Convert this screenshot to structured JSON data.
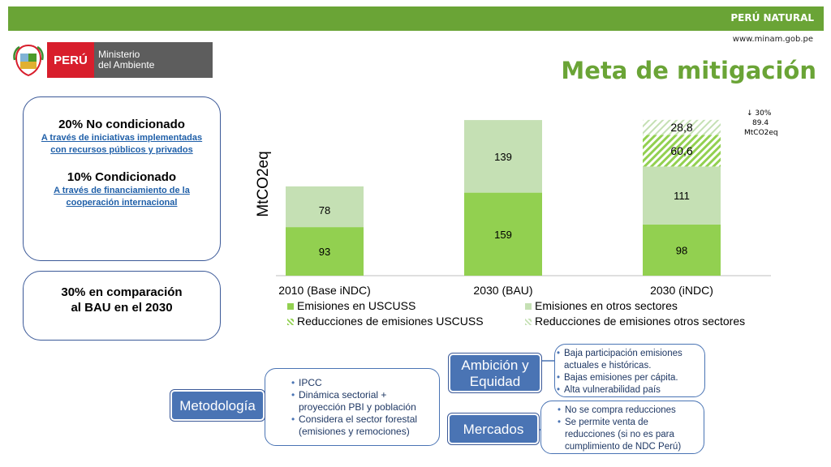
{
  "header": {
    "bar_label": "PERÚ NATURAL",
    "url": "www.minam.gob.pe",
    "title": "Meta de mitigación"
  },
  "logo": {
    "country": "PERÚ",
    "ministry": [
      "Ministerio",
      "del Ambiente"
    ]
  },
  "colors": {
    "brand_green": "#6aa436",
    "bar_dark_green": "#92d050",
    "bar_light_green": "#c5e0b4",
    "pill_blue": "#4a74b4",
    "logo_red": "#d81e2c"
  },
  "left_boxes": {
    "unconditional_title": "20% No condicionado",
    "unconditional_link": "A través de iniciativas implementadas con recursos públicos y privados",
    "conditional_title": "10% Condicionado",
    "conditional_link": "A través de financiamiento de la cooperación internacional",
    "comparison_line1": "30% en comparación",
    "comparison_line2": "al BAU en el 2030"
  },
  "chart_data": {
    "type": "bar",
    "stacked": true,
    "ylabel": "MtCO2eq",
    "categories": [
      "2010 (Base iNDC)",
      "2030 (BAU)",
      "2030 (iNDC)"
    ],
    "series": [
      {
        "name": "Emisiones en USCUSS",
        "values": [
          93,
          159,
          98
        ],
        "labels": [
          "93",
          "159",
          "98"
        ],
        "pattern": "solid",
        "color": "#92d050"
      },
      {
        "name": "Emisiones en otros sectores",
        "values": [
          78,
          139,
          111
        ],
        "labels": [
          "78",
          "139",
          "111"
        ],
        "pattern": "solid",
        "color": "#c5e0b4"
      },
      {
        "name": "Reducciones de emisiones USCUSS",
        "values": [
          0,
          0,
          60.6
        ],
        "labels": [
          "",
          "",
          "60,6"
        ],
        "pattern": "hatch",
        "color": "#92d050"
      },
      {
        "name": "Reducciones de emisiones otros sectores",
        "values": [
          0,
          0,
          28.8
        ],
        "labels": [
          "",
          "",
          "28,8"
        ],
        "pattern": "hatch",
        "color": "#c5e0b4"
      }
    ],
    "ylim": [
      0,
      300
    ],
    "annotation": [
      "↓ 30%",
      "89.4",
      "MtCO2eq"
    ],
    "legend_position": "bottom",
    "grid": false
  },
  "diagram": {
    "ambicion_label": "Ambición y Equidad",
    "ambicion_items": [
      "Baja participación emisiones actuales e históricas.",
      "Bajas emisiones per cápita.",
      "Alta vulnerabilidad país"
    ],
    "metodologia_label": "Metodología",
    "metodologia_items": [
      "IPCC",
      "Dinámica sectorial + proyección PBI y población",
      "Considera el sector forestal (emisiones y remociones)"
    ],
    "mercados_label": "Mercados",
    "mercados_items": [
      "No se compra reducciones",
      "Se permite venta de reducciones (si no es para cumplimiento de NDC Perú)"
    ]
  }
}
